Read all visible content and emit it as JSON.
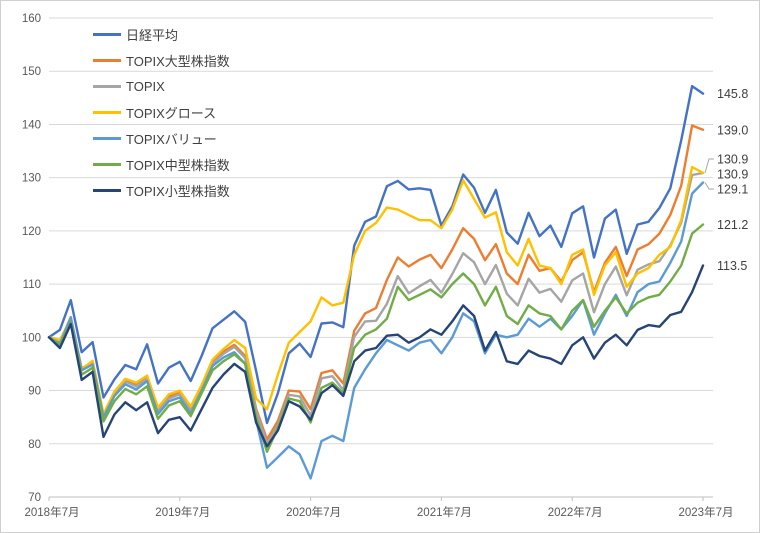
{
  "chart_data": {
    "type": "line",
    "title": "",
    "xlabel": "",
    "ylabel": "",
    "ylim": [
      70,
      160
    ],
    "y_tick_labels": [
      "70",
      "80",
      "90",
      "100",
      "110",
      "120",
      "130",
      "140",
      "150",
      "160"
    ],
    "x_tick_labels": [
      "2018年7月",
      "2019年7月",
      "2020年7月",
      "2021年7月",
      "2022年7月",
      "2023年7月"
    ],
    "x_start": "2018-07",
    "x_end": "2023-07",
    "x_interval": "monthly",
    "points_per_series": 61,
    "grid": "horizontal",
    "legend_position": "top-left-vertical",
    "series": [
      {
        "name": "日経平均",
        "color": "#4472C4",
        "end_label": "145.8",
        "values": [
          100.0,
          101.4,
          107.0,
          97.2,
          99.1,
          88.7,
          92.1,
          94.8,
          94.0,
          98.7,
          91.3,
          94.3,
          95.4,
          91.8,
          96.5,
          101.7,
          103.3,
          104.9,
          102.9,
          93.7,
          83.9,
          89.5,
          97.0,
          98.8,
          96.3,
          102.6,
          102.8,
          101.9,
          117.2,
          121.7,
          122.7,
          128.4,
          129.4,
          127.8,
          128.0,
          127.7,
          121.0,
          124.6,
          130.6,
          128.1,
          123.4,
          127.7,
          119.7,
          117.6,
          123.4,
          119.0,
          121.0,
          117.0,
          123.3,
          124.6,
          115.0,
          122.3,
          124.0,
          115.7,
          121.2,
          121.7,
          124.3,
          128.0,
          137.0,
          147.2,
          145.8
        ]
      },
      {
        "name": "TOPIX大型株指数",
        "color": "#ED7D31",
        "end_label": "139.0",
        "values": [
          100.0,
          99.1,
          103.8,
          94.1,
          95.4,
          85.4,
          89.7,
          92.0,
          91.1,
          92.6,
          86.6,
          88.9,
          89.7,
          86.6,
          90.9,
          95.5,
          97.3,
          98.6,
          96.5,
          86.6,
          80.8,
          84.3,
          90.0,
          89.8,
          86.5,
          93.3,
          93.8,
          91.3,
          101.2,
          104.5,
          105.5,
          110.8,
          115.0,
          113.3,
          114.6,
          115.5,
          113.0,
          116.5,
          120.5,
          118.5,
          114.5,
          117.5,
          112.0,
          110.0,
          115.5,
          112.5,
          113.0,
          110.5,
          114.5,
          116.0,
          108.5,
          114.0,
          117.0,
          111.5,
          116.5,
          117.5,
          119.5,
          123.0,
          128.5,
          139.8,
          139.0
        ]
      },
      {
        "name": "TOPIX",
        "color": "#A5A5A5",
        "end_label": "130.9",
        "values": [
          100.0,
          99.0,
          103.6,
          93.9,
          95.1,
          85.2,
          89.4,
          91.7,
          90.8,
          92.2,
          86.2,
          88.5,
          89.3,
          86.2,
          90.5,
          95.1,
          96.9,
          98.2,
          96.1,
          86.1,
          80.0,
          83.5,
          89.2,
          88.9,
          85.3,
          92.3,
          92.7,
          90.1,
          100.1,
          103.0,
          103.1,
          106.3,
          111.5,
          108.3,
          109.6,
          110.8,
          108.4,
          111.9,
          115.8,
          114.1,
          110.0,
          113.6,
          108.2,
          106.0,
          111.0,
          108.4,
          109.1,
          106.7,
          110.7,
          112.0,
          104.7,
          110.0,
          113.3,
          107.9,
          112.7,
          113.7,
          114.3,
          117.3,
          121.5,
          130.5,
          130.9
        ]
      },
      {
        "name": "TOPIXグロース",
        "color": "#FFC000",
        "end_label": "130.9",
        "values": [
          100.0,
          99.5,
          103.5,
          94.0,
          95.6,
          85.6,
          89.8,
          92.2,
          91.5,
          92.8,
          86.8,
          89.3,
          90.0,
          87.0,
          91.0,
          95.8,
          97.8,
          99.5,
          98.0,
          88.5,
          86.5,
          93.0,
          99.0,
          101.0,
          103.0,
          107.5,
          106.0,
          106.5,
          115.5,
          120.0,
          121.5,
          124.4,
          124.0,
          123.0,
          122.0,
          122.0,
          120.5,
          124.0,
          129.5,
          126.0,
          122.5,
          123.5,
          116.0,
          113.5,
          118.5,
          113.5,
          113.0,
          110.0,
          115.5,
          116.5,
          108.0,
          113.5,
          116.0,
          109.5,
          112.0,
          113.0,
          115.5,
          117.0,
          122.0,
          132.0,
          130.9
        ]
      },
      {
        "name": "TOPIXバリュー",
        "color": "#5B9BD5",
        "end_label": "129.1",
        "values": [
          100.0,
          98.8,
          103.7,
          93.8,
          94.9,
          85.0,
          89.0,
          91.2,
          90.2,
          91.8,
          85.6,
          88.0,
          88.7,
          85.6,
          90.0,
          94.6,
          96.2,
          97.2,
          95.0,
          84.5,
          75.5,
          77.5,
          79.5,
          78.0,
          73.5,
          80.5,
          81.5,
          80.5,
          90.5,
          94.0,
          97.0,
          99.5,
          98.5,
          97.5,
          99.0,
          99.5,
          97.0,
          100.0,
          104.5,
          103.0,
          97.0,
          100.5,
          100.0,
          100.5,
          103.5,
          102.0,
          103.5,
          101.5,
          104.0,
          107.0,
          100.5,
          104.5,
          108.0,
          104.0,
          108.5,
          110.0,
          110.5,
          114.0,
          118.0,
          127.0,
          129.1
        ]
      },
      {
        "name": "TOPIX中型株指数",
        "color": "#70AD47",
        "end_label": "121.2",
        "values": [
          100.0,
          98.5,
          102.8,
          93.0,
          94.3,
          84.2,
          88.0,
          90.3,
          89.3,
          90.8,
          84.7,
          87.2,
          88.0,
          85.2,
          89.5,
          93.8,
          95.5,
          96.8,
          95.0,
          85.0,
          78.5,
          83.0,
          88.5,
          88.0,
          84.0,
          90.5,
          91.5,
          89.5,
          98.0,
          100.5,
          101.5,
          103.5,
          109.5,
          107.0,
          108.0,
          109.0,
          107.5,
          110.0,
          112.0,
          110.0,
          106.0,
          109.5,
          104.0,
          102.5,
          106.0,
          104.5,
          104.0,
          101.5,
          105.0,
          107.0,
          102.0,
          105.0,
          107.5,
          104.5,
          106.5,
          107.5,
          108.0,
          110.5,
          113.5,
          119.5,
          121.2
        ]
      },
      {
        "name": "TOPIX小型株指数",
        "color": "#264478",
        "end_label": "113.5",
        "values": [
          100.0,
          98.0,
          102.5,
          92.0,
          93.5,
          81.3,
          85.5,
          87.8,
          86.3,
          87.8,
          82.0,
          84.5,
          85.0,
          82.5,
          86.5,
          90.5,
          93.0,
          95.0,
          93.5,
          84.0,
          79.5,
          82.5,
          88.0,
          87.0,
          84.5,
          89.5,
          91.0,
          89.0,
          95.5,
          97.5,
          98.0,
          100.3,
          100.5,
          99.0,
          100.0,
          101.5,
          100.5,
          103.0,
          106.0,
          104.0,
          97.5,
          101.0,
          95.5,
          95.0,
          97.5,
          96.5,
          96.0,
          95.0,
          98.5,
          100.0,
          96.0,
          99.0,
          100.5,
          98.5,
          101.4,
          102.3,
          102.0,
          104.2,
          104.8,
          108.5,
          113.5
        ]
      }
    ],
    "axis_colors": {
      "grid": "#D9D9D9",
      "axis_line": "#BFBFBF",
      "tick_text": "#595959",
      "end_label_text": "#404040",
      "leader_line": "#A6A6A6"
    }
  }
}
